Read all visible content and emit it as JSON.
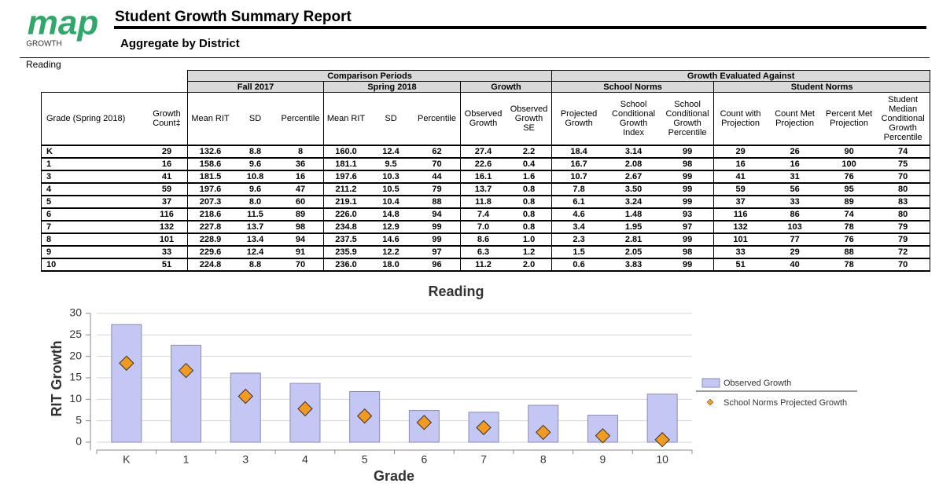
{
  "header": {
    "logo": "map",
    "logo_sub": "GROWTH",
    "title": "Student Growth Summary Report",
    "subtitle": "Aggregate by District",
    "subject": "Reading"
  },
  "table": {
    "group_headers": [
      "Comparison Periods",
      "Growth Evaluated Against"
    ],
    "subgroups": [
      "Fall 2017",
      "Spring 2018",
      "Growth",
      "School Norms",
      "Student Norms"
    ],
    "columns": [
      "Grade  (Spring 2018)",
      "Growth Count‡",
      "Mean RIT",
      "SD",
      "Percentile",
      "Mean RIT",
      "SD",
      "Percentile",
      "Observed Growth",
      "Observed Growth SE",
      "Projected Growth",
      "School Conditional Growth Index",
      "School Conditional Growth Percentile",
      "Count with Projection",
      "Count Met Projection",
      "Percent Met Projection",
      "Student Median Conditional Growth Percentile"
    ],
    "rows": [
      [
        "K",
        "29",
        "132.6",
        "8.8",
        "8",
        "160.0",
        "12.4",
        "62",
        "27.4",
        "2.2",
        "18.4",
        "3.14",
        "99",
        "29",
        "26",
        "90",
        "74"
      ],
      [
        "1",
        "16",
        "158.6",
        "9.6",
        "36",
        "181.1",
        "9.5",
        "70",
        "22.6",
        "0.4",
        "16.7",
        "2.08",
        "98",
        "16",
        "16",
        "100",
        "75"
      ],
      [
        "3",
        "41",
        "181.5",
        "10.8",
        "16",
        "197.6",
        "10.3",
        "44",
        "16.1",
        "1.6",
        "10.7",
        "2.67",
        "99",
        "41",
        "31",
        "76",
        "70"
      ],
      [
        "4",
        "59",
        "197.6",
        "9.6",
        "47",
        "211.2",
        "10.5",
        "79",
        "13.7",
        "0.8",
        "7.8",
        "3.50",
        "99",
        "59",
        "56",
        "95",
        "80"
      ],
      [
        "5",
        "37",
        "207.3",
        "8.0",
        "60",
        "219.1",
        "10.4",
        "88",
        "11.8",
        "0.8",
        "6.1",
        "3.24",
        "99",
        "37",
        "33",
        "89",
        "83"
      ],
      [
        "6",
        "116",
        "218.6",
        "11.5",
        "89",
        "226.0",
        "14.8",
        "94",
        "7.4",
        "0.8",
        "4.6",
        "1.48",
        "93",
        "116",
        "86",
        "74",
        "80"
      ],
      [
        "7",
        "132",
        "227.8",
        "13.7",
        "98",
        "234.8",
        "12.9",
        "99",
        "7.0",
        "0.8",
        "3.4",
        "1.95",
        "97",
        "132",
        "103",
        "78",
        "79"
      ],
      [
        "8",
        "101",
        "228.9",
        "13.4",
        "94",
        "237.5",
        "14.6",
        "99",
        "8.6",
        "1.0",
        "2.3",
        "2.81",
        "99",
        "101",
        "77",
        "76",
        "79"
      ],
      [
        "9",
        "33",
        "229.6",
        "12.4",
        "91",
        "235.9",
        "12.2",
        "97",
        "6.3",
        "1.2",
        "1.5",
        "2.05",
        "98",
        "33",
        "29",
        "88",
        "72"
      ],
      [
        "10",
        "51",
        "224.8",
        "8.8",
        "70",
        "236.0",
        "18.0",
        "96",
        "11.2",
        "2.0",
        "0.6",
        "3.83",
        "99",
        "51",
        "40",
        "78",
        "70"
      ]
    ]
  },
  "chart_data": {
    "type": "bar",
    "title": "Reading",
    "x_label": "Grade",
    "y_label": "RIT Growth",
    "categories": [
      "K",
      "1",
      "3",
      "4",
      "5",
      "6",
      "7",
      "8",
      "9",
      "10"
    ],
    "ylim": [
      0,
      30
    ],
    "yticks": [
      0,
      5,
      10,
      15,
      20,
      25,
      30
    ],
    "grid": true,
    "series": [
      {
        "name": "Observed Growth",
        "color": "#c4c6f4",
        "values": [
          27.4,
          22.6,
          16.1,
          13.7,
          11.8,
          7.4,
          7.0,
          8.6,
          6.3,
          11.2
        ]
      },
      {
        "name": "School Norms Projected Growth",
        "color": "#f39a1e",
        "values": [
          18.4,
          16.7,
          10.7,
          7.8,
          6.1,
          4.6,
          3.4,
          2.3,
          1.5,
          0.6
        ]
      }
    ]
  }
}
